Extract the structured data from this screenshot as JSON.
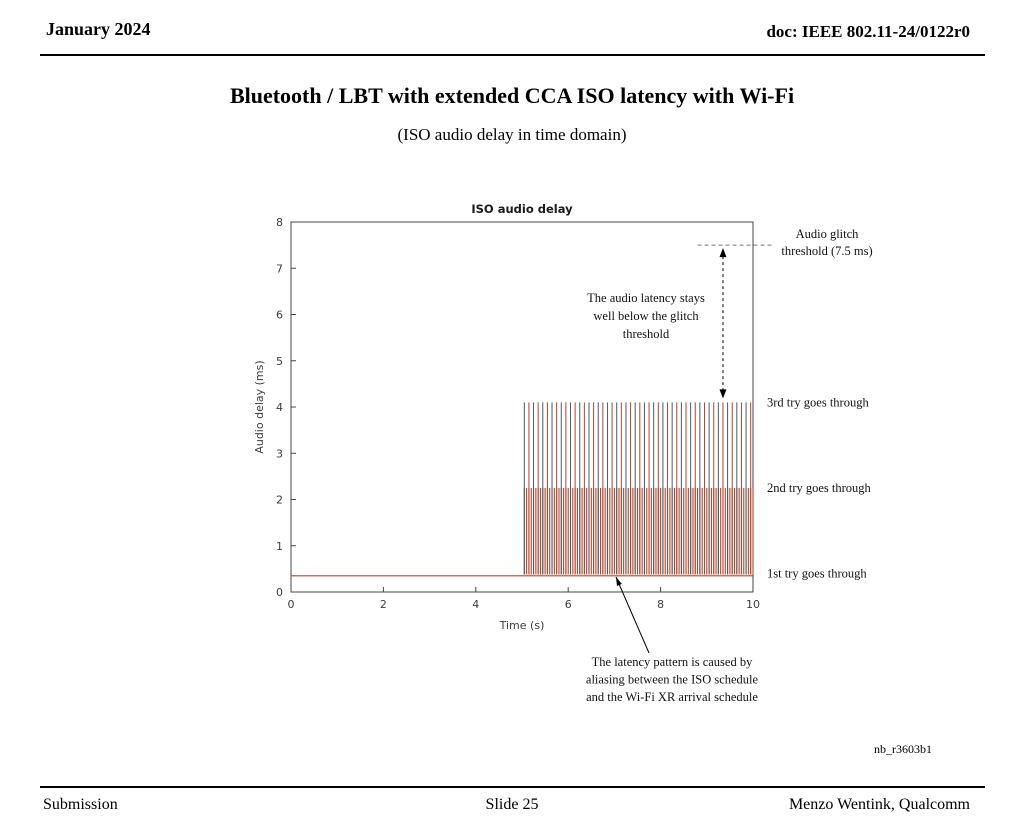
{
  "header": {
    "date": "January 2024",
    "doc": "doc: IEEE 802.11-24/0122r0"
  },
  "title": "Bluetooth / LBT with extended CCA ISO latency with Wi-Fi",
  "subtitle": "(ISO audio delay in time domain)",
  "watermark": "nb_r3603b1",
  "footer": {
    "left": "Submission",
    "center": "Slide 25",
    "right": "Menzo Wentink, Qualcomm"
  },
  "chart_data": {
    "type": "bar",
    "title": "ISO audio delay",
    "xlabel": "Time (s)",
    "ylabel": "Audio delay (ms)",
    "xlim": [
      0,
      10
    ],
    "ylim": [
      0,
      8
    ],
    "xticks": [
      0,
      2,
      4,
      6,
      8,
      10
    ],
    "yticks": [
      0,
      1,
      2,
      3,
      4,
      5,
      6,
      7,
      8
    ],
    "grid": false,
    "legend": "none",
    "baseline": {
      "value": 0.35,
      "x_start": 0,
      "x_end": 10
    },
    "burst": {
      "x_start": 5.05,
      "x_end": 10,
      "spacing": 0.05,
      "base": 0.38,
      "levels": {
        "first": 0.38,
        "second": 2.25,
        "third": 4.1
      }
    },
    "glitch_threshold": 7.5,
    "threshold_line_x": [
      8.8,
      10.4
    ],
    "headroom_arrow_x": 9.35,
    "colors": {
      "spike_red": "#b0452c",
      "spike_dark": "#4a5a68",
      "threshold_line": "#777777",
      "axis": "#444444"
    },
    "annotations": {
      "glitch_threshold_label": [
        "Audio glitch",
        "threshold (7.5 ms)"
      ],
      "latency_note": [
        "The audio latency stays",
        "well below the glitch",
        "threshold"
      ],
      "level_labels": {
        "third": "3rd try goes through",
        "second": "2nd try goes through",
        "first": "1st try goes through"
      },
      "aliasing_note": [
        "The latency pattern is caused by",
        "aliasing between the ISO schedule",
        "and the Wi-Fi XR arrival schedule"
      ]
    }
  }
}
